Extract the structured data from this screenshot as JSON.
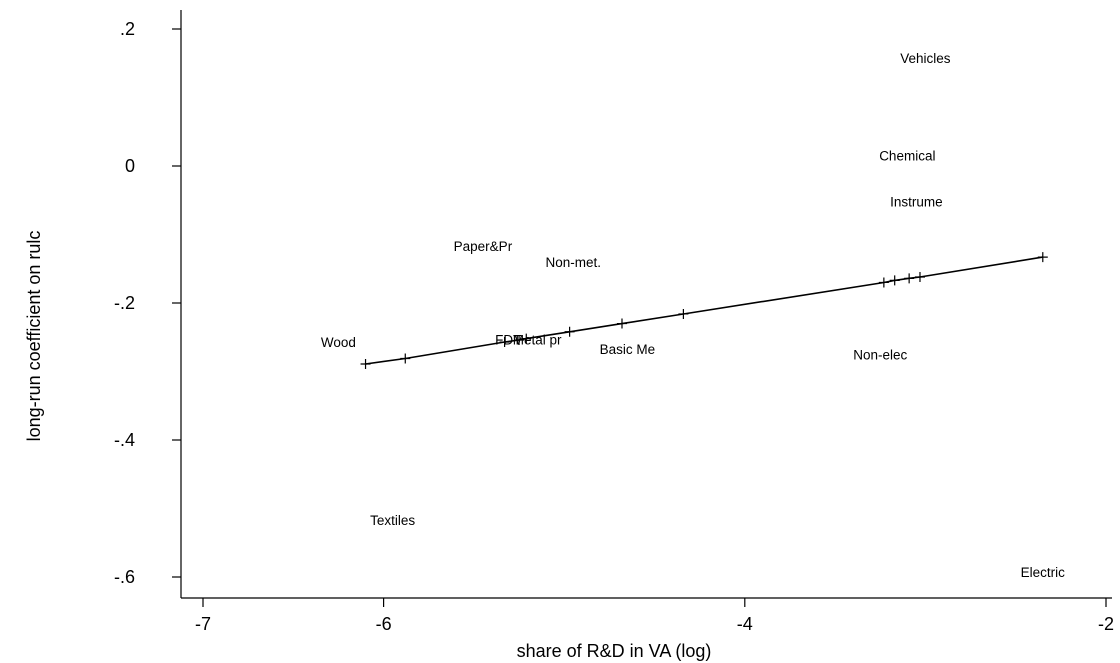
{
  "chart_data": {
    "type": "scatter",
    "title": "",
    "xlabel": "share of R&D in VA (log)",
    "ylabel": "long-run coefficient on rulc",
    "xlim": [
      -7.05,
      -1.95
    ],
    "ylim": [
      -0.625,
      0.23
    ],
    "x_ticks": [
      -7,
      -6,
      -4,
      -2
    ],
    "x_tick_labels": [
      "-7",
      "-6",
      "-4",
      "-2"
    ],
    "y_ticks": [
      -0.6,
      -0.4,
      -0.2,
      0,
      0.2
    ],
    "y_tick_labels": [
      "-.6",
      "-.4",
      "-.2",
      "0",
      ".2"
    ],
    "grid": false,
    "points": [
      {
        "label": "Vehicles",
        "x": -3.0,
        "y": 0.158
      },
      {
        "label": "Chemical",
        "x": -3.1,
        "y": 0.015
      },
      {
        "label": "Instrume",
        "x": -3.05,
        "y": -0.052
      },
      {
        "label": "Paper&Pr",
        "x": -5.45,
        "y": -0.117
      },
      {
        "label": "Non-met.",
        "x": -4.95,
        "y": -0.14
      },
      {
        "label": "Wood",
        "x": -6.25,
        "y": -0.257
      },
      {
        "label": "FDT",
        "x": -5.31,
        "y": -0.253
      },
      {
        "label": "Metal pr",
        "x": -5.15,
        "y": -0.253
      },
      {
        "label": "Basic Me",
        "x": -4.65,
        "y": -0.267
      },
      {
        "label": "Non-elec",
        "x": -3.25,
        "y": -0.275
      },
      {
        "label": "Textiles",
        "x": -5.95,
        "y": -0.517
      },
      {
        "label": "Electric",
        "x": -2.35,
        "y": -0.593
      }
    ],
    "fit_line": {
      "x": [
        -6.1,
        -5.88,
        -5.33,
        -5.25,
        -5.21,
        -4.97,
        -4.68,
        -4.34,
        -3.23,
        -3.17,
        -3.09,
        -3.03,
        -2.35
      ],
      "y": [
        -0.289,
        -0.281,
        -0.257,
        -0.254,
        -0.252,
        -0.242,
        -0.23,
        -0.216,
        -0.17,
        -0.167,
        -0.164,
        -0.162,
        -0.133
      ]
    }
  }
}
